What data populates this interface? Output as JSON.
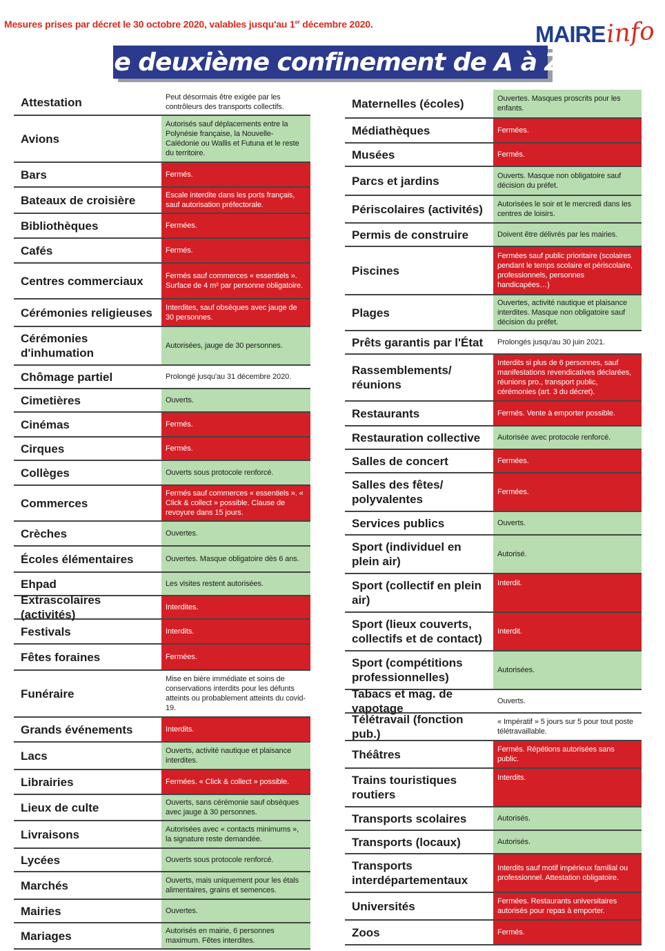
{
  "header": {
    "note": "Mesures prises par décret le 30 octobre 2020, valables jusqu'au 1",
    "note_sup": "er",
    "note_end": " décembre 2020.",
    "logo_maire": "MAIRE",
    "logo_info": "info",
    "title": "Le deuxième confinement de A à Z"
  },
  "colors": {
    "green": "#b7ddb0",
    "red": "#d41f26",
    "title_bg": "#2b3a8c",
    "accent": "#d52b1e"
  },
  "left_column": [
    {
      "label": "Attestation",
      "status": "Peut désormais être exigée par les contrôleurs des transports collectifs.",
      "color": "white",
      "h": 38
    },
    {
      "label": "Avions",
      "status": "Autorisés sauf déplacements entre la Polynésie française, la Nouvelle-Calédonie ou Wallis et Futuna et le reste du territoire.",
      "color": "green",
      "h": 68
    },
    {
      "label": "Bars",
      "status": "Fermés.",
      "color": "red",
      "h": 36
    },
    {
      "label": "Bateaux de croisière",
      "status": "Escale interdite dans les ports français, sauf autorisation préfectorale.",
      "color": "red",
      "h": 38
    },
    {
      "label": "Bibliothèques",
      "status": "Fermées.",
      "color": "red",
      "h": 36
    },
    {
      "label": "Cafés",
      "status": "Fermés.",
      "color": "red",
      "h": 36
    },
    {
      "label": "Centres commerciaux",
      "status": "Fermés sauf commerces « essentiels ». Surface de 4 m² par personne obligatoire.",
      "color": "red",
      "h": 52
    },
    {
      "label": "Cérémonies religieuses",
      "status": "Interdites, sauf obsèques avec jauge de 30 personnes.",
      "color": "red",
      "h": 40
    },
    {
      "label": "Cérémonies d'inhumation",
      "status": "Autorisées, jauge de 30 personnes.",
      "color": "green",
      "h": 56
    },
    {
      "label": "Chômage partiel",
      "status": "Prolongé jusqu'au 31 décembre 2020.",
      "color": "white",
      "h": 34
    },
    {
      "label": "Cimetières",
      "status": "Ouverts.",
      "color": "green",
      "h": 34
    },
    {
      "label": "Cinémas",
      "status": "Fermés.",
      "color": "red",
      "h": 36
    },
    {
      "label": "Cirques",
      "status": "Fermés.",
      "color": "red",
      "h": 34
    },
    {
      "label": "Collèges",
      "status": "Ouverts sous protocole renforcé.",
      "color": "green",
      "h": 36
    },
    {
      "label": "Commerces",
      "status": "Fermés sauf commerces « essentiels ». « Click & collect » possible. Clause de revoyure dans 15 jours.",
      "color": "red",
      "h": 52
    },
    {
      "label": "Crèches",
      "status": "Ouvertes.",
      "color": "green",
      "h": 36
    },
    {
      "label": "Écoles élémentaires",
      "status": "Ouvertes. Masque obligatoire dès 6 ans.",
      "color": "green",
      "h": 38
    },
    {
      "label": "Ehpad",
      "status": "Les visites restent autorisées.",
      "color": "green",
      "h": 34
    },
    {
      "label": "Extrascolaires (activités)",
      "status": "Interdites.",
      "color": "red",
      "h": 34
    },
    {
      "label": "Festivals",
      "status": "Interdits.",
      "color": "red",
      "h": 36
    },
    {
      "label": "Fêtes foraines",
      "status": "Fermées.",
      "color": "red",
      "h": 38
    },
    {
      "label": "Funéraire",
      "status": "Mise en bière immédiate et soins de conservations interdits pour les défunts atteints ou probablement atteints du covid-19.",
      "color": "white",
      "h": 68
    },
    {
      "label": "Grands événements",
      "status": "Interdits.",
      "color": "red",
      "h": 36
    },
    {
      "label": "Lacs",
      "status": "Ouverts, activité nautique et plaisance interdites.",
      "color": "green",
      "h": 40
    },
    {
      "label": "Librairies",
      "status": "Fermées. « Click & collect » possible.",
      "color": "red",
      "h": 36
    },
    {
      "label": "Lieux de culte",
      "status": "Ouverts, sans cérémonie sauf obsèques avec jauge à 30 personnes.",
      "color": "green",
      "h": 38
    },
    {
      "label": "Livraisons",
      "status": "Autorisées avec « contacts minimums », la signature reste demandée.",
      "color": "green",
      "h": 40
    },
    {
      "label": "Lycées",
      "status": "Ouverts sous protocole renforcé.",
      "color": "green",
      "h": 34
    },
    {
      "label": "Marchés",
      "status": "Ouverts, mais uniquement pour les étals alimentaires, grains et semences.",
      "color": "green",
      "h": 40
    },
    {
      "label": "Mairies",
      "status": "Ouvertes.",
      "color": "green",
      "h": 34
    },
    {
      "label": "Mariages",
      "status": "Autorisés en mairie, 6 personnes maximum. Fêtes interdites.",
      "color": "green",
      "h": 38
    }
  ],
  "right_column": [
    {
      "label": "Maternelles (écoles)",
      "status": "Ouvertes. Masques proscrits pour les enfants.",
      "color": "green",
      "h": 42
    },
    {
      "label": "Médiathèques",
      "status": "Fermées.",
      "color": "red",
      "h": 36
    },
    {
      "label": "Musées",
      "status": "Fermés.",
      "color": "red",
      "h": 34
    },
    {
      "label": "Parcs et jardins",
      "status": "Ouverts. Masque non obligatoire sauf décision du préfet.",
      "color": "green",
      "h": 42
    },
    {
      "label": "Périscolaires (activités)",
      "status": "Autorisées le soir et le mercredi dans les centres de loisirs.",
      "color": "green",
      "h": 40
    },
    {
      "label": "Permis de construire",
      "status": "Doivent être délivrés par les mairies.",
      "color": "green",
      "h": 34
    },
    {
      "label": "Piscines",
      "status": "Fermées sauf public prioritaire (scolaires pendant le temps scolaire et périscolaire, professionnels, personnes handicapées…)",
      "color": "red",
      "h": 70
    },
    {
      "label": "Plages",
      "status": "Ouvertes, activité nautique et plaisance interdites. Masque non obligatoire sauf décision du préfet.",
      "color": "green",
      "h": 52
    },
    {
      "label": "Prêts garantis par l'État",
      "status": "Prolongés jusqu'au 30 juin 2021.",
      "color": "white",
      "h": 34
    },
    {
      "label": "Rassemblements/ réunions",
      "status": "Interdits si plus de 6 personnes, sauf manifestations revendicatives déclarées, réunions pro., transport public, cérémonies (art. 3 du décret).",
      "color": "red",
      "h": 68
    },
    {
      "label": "Restaurants",
      "status": "Fermés. Vente à emporter possible.",
      "color": "red",
      "h": 36
    },
    {
      "label": "Restauration collective",
      "status": "Autorisée avec protocole renforcé.",
      "color": "green",
      "h": 34
    },
    {
      "label": "Salles de concert",
      "status": "Fermées.",
      "color": "red",
      "h": 34
    },
    {
      "label": "Salles des fêtes/ polyvalentes",
      "status": "Fermées.",
      "color": "red",
      "h": 56
    },
    {
      "label": "Services publics",
      "status": "Ouverts.",
      "color": "green",
      "h": 34
    },
    {
      "label": "Sport (individuel en plein air)",
      "status": "Autorisé.",
      "color": "green",
      "h": 56
    },
    {
      "label": "Sport (collectif en plein air)",
      "status": "Interdit.",
      "color": "red",
      "h": 56,
      "top": true
    },
    {
      "label": "Sport (lieux couverts, collectifs et de contact)",
      "status": "Interdit.",
      "color": "red",
      "h": 56
    },
    {
      "label": "Sport (compétitions professionnelles)",
      "status": "Autorisées.",
      "color": "green",
      "h": 56
    },
    {
      "label": "Tabacs et mag. de vapotage",
      "status": "Ouverts.",
      "color": "white",
      "h": 34
    },
    {
      "label": "Télétravail (fonction pub.)",
      "status": "« Impératif » 5 jours sur 5 pour tout poste télétravaillable.",
      "color": "white",
      "h": 40
    },
    {
      "label": "Théâtres",
      "status": "Fermés. Répétions autorisées sans public.",
      "color": "red",
      "h": 40
    },
    {
      "label": "Trains touristiques routiers",
      "status": "Interdits.",
      "color": "red",
      "h": 56,
      "top": true
    },
    {
      "label": "Transports scolaires",
      "status": "Autorisés.",
      "color": "green",
      "h": 34
    },
    {
      "label": "Transports (locaux)",
      "status": "Autorisés.",
      "color": "green",
      "h": 34
    },
    {
      "label": "Transports interdépartementaux",
      "status": "Interdits sauf motif impérieux familial ou professionnel. Attestation obligatoire.",
      "color": "red",
      "h": 56
    },
    {
      "label": "Universités",
      "status": "Fermées. Restaurants universitaires autorisés pour repas à emporter.",
      "color": "red",
      "h": 40
    },
    {
      "label": "Zoos",
      "status": "Fermés.",
      "color": "red",
      "h": 36
    }
  ]
}
